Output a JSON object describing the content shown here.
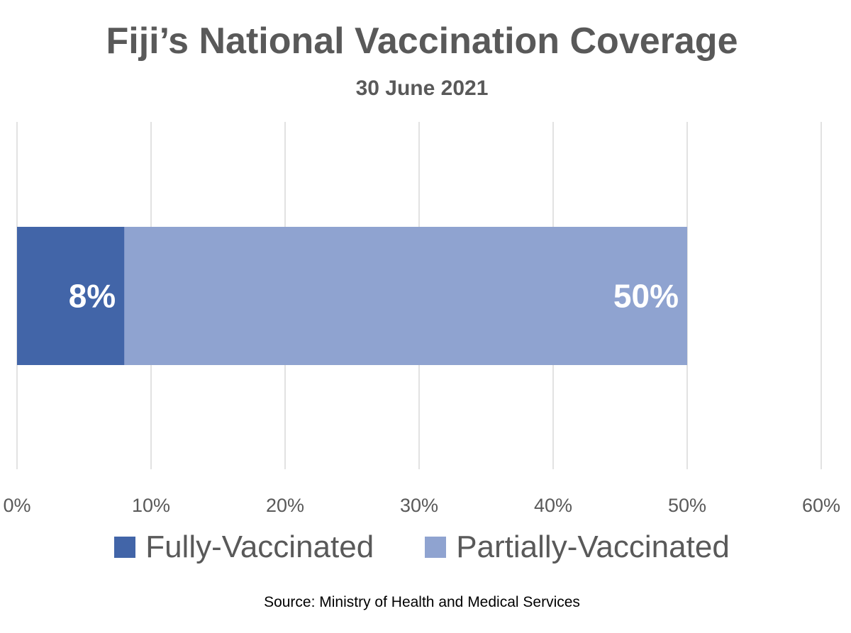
{
  "colors": {
    "text": "#595959",
    "gridline": "#d9d9d9",
    "data_label": "#ffffff"
  },
  "chart_data": {
    "type": "bar",
    "orientation": "horizontal",
    "stacked": false,
    "title": "Fiji’s National Vaccination Coverage",
    "subtitle": "30 June 2021",
    "source": "Source: Ministry of Health and Medical Services",
    "xlim": [
      0,
      60
    ],
    "xticks": [
      "0%",
      "10%",
      "20%",
      "30%",
      "40%",
      "50%",
      "60%"
    ],
    "grid": true,
    "legend_position": "bottom",
    "series": [
      {
        "name": "Partially-Vaccinated",
        "value": 50,
        "label": "50%",
        "color": "#8fa3d0"
      },
      {
        "name": "Fully-Vaccinated",
        "value": 8,
        "label": "8%",
        "color": "#4265a8"
      }
    ]
  },
  "legend": [
    {
      "label": "Fully-Vaccinated",
      "color": "#4265a8"
    },
    {
      "label": "Partially-Vaccinated",
      "color": "#8fa3d0"
    }
  ]
}
